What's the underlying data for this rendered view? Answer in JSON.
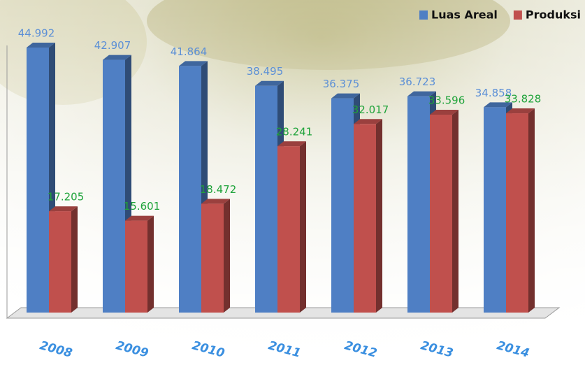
{
  "chart_data": {
    "type": "bar3d",
    "categories": [
      "2008",
      "2009",
      "2010",
      "2011",
      "2012",
      "2013",
      "2014"
    ],
    "series": [
      {
        "name": "Luas Areal",
        "color": "#4f7fc4",
        "values": [
          44.992,
          42.907,
          41.864,
          38.495,
          36.375,
          36.723,
          34.858
        ]
      },
      {
        "name": "Produksi",
        "color": "#c0504d",
        "values": [
          17.205,
          15.601,
          18.472,
          28.241,
          32.017,
          33.596,
          33.828
        ]
      }
    ],
    "label_colors": [
      "#5b8fd6",
      "#1fa33a"
    ],
    "legend": "top-right"
  }
}
